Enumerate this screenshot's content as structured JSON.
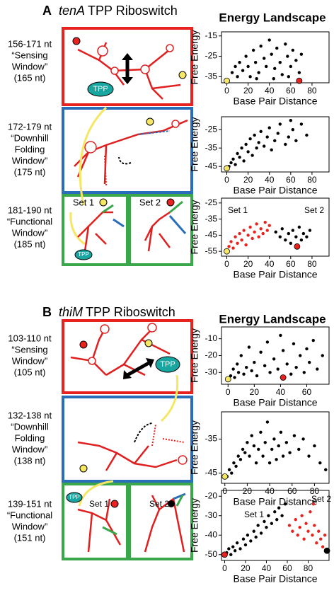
{
  "figure": {
    "panels": [
      {
        "letter": "A",
        "name": "tenA",
        "title_rest": "TPP Riboswitch",
        "landscape_title": "Energy Landscape",
        "windows": [
          [
            "156-171 nt",
            "“Sensing",
            "Window”",
            "(165 nt)"
          ],
          [
            "172-179 nt",
            "“Downhill",
            "Folding",
            "Window”",
            "(175 nt)"
          ],
          [
            "181-190 nt",
            "“Functional",
            "Window”",
            "(185 nt)"
          ]
        ],
        "diagram_labels": [
          "TPP",
          "Set 1",
          "Set 2",
          "TPP"
        ]
      },
      {
        "letter": "B",
        "name": "thiM",
        "title_rest": "TPP Riboswitch",
        "landscape_title": "Energy Landscape",
        "windows": [
          [
            "103-110 nt",
            "“Sensing",
            "Window”",
            "(105 nt)"
          ],
          [
            "132-138 nt",
            "“Downhill",
            "Folding",
            "Window”",
            "(138 nt)"
          ],
          [
            "139-151 nt",
            "“Functional",
            "Window”",
            "(151 nt)"
          ]
        ],
        "diagram_labels": [
          "TPP",
          "TPP",
          "Set 1",
          "Set 2"
        ]
      }
    ]
  },
  "chart_data": [
    {
      "type": "scatter",
      "xlabel": "Base Pair Distance",
      "ylabel": "Free Energy",
      "xlim": [
        -5,
        96
      ],
      "ylim": [
        -38,
        -13
      ],
      "xticks": [
        0,
        20,
        40,
        60,
        80
      ],
      "yticks": [
        -15,
        -25,
        -35
      ],
      "series": [
        {
          "color": "#000000",
          "x": [
            5,
            8,
            10,
            12,
            15,
            18,
            20,
            22,
            25,
            27,
            30,
            32,
            35,
            37,
            40,
            42,
            45,
            47,
            50,
            52,
            55,
            57,
            60,
            62,
            65,
            68,
            70,
            28,
            44,
            58
          ],
          "values": [
            -33,
            -30,
            -35,
            -28,
            -32,
            -25,
            -30,
            -35,
            -22,
            -28,
            -33,
            -20,
            -26,
            -30,
            -17,
            -24,
            -31,
            -21,
            -28,
            -34,
            -19,
            -25,
            -30,
            -22,
            -27,
            -33,
            -24,
            -36,
            -36,
            -35
          ]
        },
        {
          "color": "#f5e663",
          "x": [
            0
          ],
          "values": [
            -37
          ]
        },
        {
          "color": "#e8231f",
          "x": [
            68
          ],
          "values": [
            -37
          ]
        }
      ]
    },
    {
      "type": "scatter",
      "xlabel": "Base Pair Distance",
      "ylabel": "Free Energy",
      "xlim": [
        -5,
        96
      ],
      "ylim": [
        -48,
        -18
      ],
      "xticks": [
        0,
        20,
        40,
        60,
        80
      ],
      "yticks": [
        -25,
        -35,
        -45
      ],
      "series": [
        {
          "color": "#000000",
          "x": [
            2,
            4,
            6,
            8,
            10,
            12,
            14,
            16,
            18,
            20,
            22,
            24,
            26,
            28,
            30,
            32,
            35,
            38,
            40,
            42,
            45,
            48,
            50,
            55,
            58,
            62,
            65,
            70,
            75,
            60
          ],
          "values": [
            -45,
            -43,
            -41,
            -44,
            -38,
            -40,
            -35,
            -42,
            -33,
            -37,
            -30,
            -39,
            -28,
            -35,
            -32,
            -26,
            -34,
            -29,
            -24,
            -36,
            -31,
            -27,
            -22,
            -33,
            -29,
            -25,
            -31,
            -22,
            -28,
            -20
          ]
        },
        {
          "color": "#f5e663",
          "x": [
            0
          ],
          "values": [
            -46
          ]
        }
      ]
    },
    {
      "type": "scatter",
      "xlabel": "Base Pair Distance",
      "ylabel": "Free Energy",
      "xlim": [
        -5,
        96
      ],
      "ylim": [
        -58,
        -22
      ],
      "xticks": [
        0,
        20,
        40,
        60,
        80
      ],
      "yticks": [
        -25,
        -35,
        -45,
        -55
      ],
      "annotations": [
        "Set 1",
        "Set 2"
      ],
      "series": [
        {
          "color": "#e8231f",
          "x": [
            2,
            4,
            6,
            8,
            10,
            12,
            14,
            16,
            18,
            20,
            22,
            24,
            26,
            28,
            30,
            32,
            34,
            36,
            38,
            40
          ],
          "values": [
            -52,
            -49,
            -53,
            -46,
            -50,
            -44,
            -48,
            -42,
            -51,
            -45,
            -40,
            -47,
            -43,
            -38,
            -46,
            -41,
            -44,
            -37,
            -42,
            -39
          ]
        },
        {
          "color": "#000000",
          "x": [
            46,
            50,
            52,
            55,
            58,
            60,
            62,
            65,
            68,
            70,
            72,
            75,
            78
          ],
          "values": [
            -43,
            -46,
            -41,
            -48,
            -44,
            -50,
            -42,
            -46,
            -40,
            -48,
            -44,
            -46,
            -42
          ]
        },
        {
          "color": "#f5e663",
          "x": [
            0
          ],
          "values": [
            -55
          ]
        },
        {
          "color": "#e8231f",
          "x": [
            66
          ],
          "values": [
            -52
          ]
        }
      ]
    },
    {
      "type": "scatter",
      "xlabel": "Base Pair Distance",
      "ylabel": "Free Energy",
      "xlim": [
        -5,
        77
      ],
      "ylim": [
        -37,
        -3
      ],
      "xticks": [
        0,
        20,
        40,
        60
      ],
      "yticks": [
        -10,
        -20,
        -30
      ],
      "series": [
        {
          "color": "#000000",
          "x": [
            2,
            4,
            5,
            7,
            8,
            10,
            12,
            14,
            16,
            18,
            20,
            22,
            25,
            28,
            30,
            32,
            35,
            38,
            40,
            42,
            45,
            48,
            50,
            52,
            55,
            58,
            60,
            62,
            65,
            68,
            72
          ],
          "values": [
            -32,
            -28,
            -33,
            -25,
            -30,
            -20,
            -31,
            -27,
            -15,
            -29,
            -24,
            -32,
            -18,
            -26,
            -12,
            -30,
            -22,
            -28,
            -8,
            -17,
            -25,
            -31,
            -13,
            -27,
            -20,
            -30,
            -16,
            -24,
            -11,
            -28,
            -20
          ]
        },
        {
          "color": "#f5e663",
          "x": [
            0
          ],
          "values": [
            -34
          ]
        },
        {
          "color": "#e8231f",
          "x": [
            42
          ],
          "values": [
            -33
          ]
        }
      ]
    },
    {
      "type": "scatter",
      "xlabel": "Base Pair Distance",
      "ylabel": "Free Energy",
      "xlim": [
        -3,
        93
      ],
      "ylim": [
        -48,
        -27
      ],
      "xticks": [
        0,
        20,
        40,
        60,
        80
      ],
      "yticks": [
        -35,
        -45
      ],
      "series": [
        {
          "color": "#000000",
          "x": [
            2,
            4,
            6,
            8,
            10,
            12,
            14,
            16,
            18,
            20,
            22,
            24,
            26,
            28,
            30,
            32,
            34,
            36,
            38,
            40,
            42,
            44,
            46,
            48,
            50,
            52,
            55,
            58,
            62,
            66,
            70,
            75,
            80,
            85,
            90
          ],
          "values": [
            -46,
            -44,
            -45,
            -42,
            -43,
            -40,
            -41,
            -38,
            -39,
            -36,
            -40,
            -34,
            -37,
            -42,
            -38,
            -33,
            -40,
            -36,
            -30,
            -42,
            -38,
            -35,
            -41,
            -37,
            -33,
            -40,
            -36,
            -39,
            -34,
            -38,
            -35,
            -40,
            -37,
            -42,
            -44
          ]
        },
        {
          "color": "#f5e663",
          "x": [
            0
          ],
          "values": [
            -46
          ]
        }
      ]
    },
    {
      "type": "scatter",
      "xlabel": "Base Pair Distance",
      "ylabel": "Free Energy",
      "xlim": [
        -3,
        100
      ],
      "ylim": [
        -53,
        -17
      ],
      "xticks": [
        0,
        20,
        40,
        60,
        80
      ],
      "yticks": [
        -20,
        -30,
        -40,
        -50
      ],
      "annotations": [
        "Set 1",
        "Set 2"
      ],
      "series": [
        {
          "color": "#000000",
          "x": [
            2,
            4,
            6,
            8,
            10,
            12,
            15,
            18,
            20,
            22,
            25,
            28,
            30,
            32,
            35,
            38,
            40,
            42,
            45,
            48,
            50,
            52,
            55,
            58
          ],
          "values": [
            -49,
            -47,
            -50,
            -46,
            -48,
            -44,
            -47,
            -42,
            -45,
            -40,
            -43,
            -38,
            -41,
            -35,
            -39,
            -33,
            -36,
            -30,
            -34,
            -28,
            -32,
            -26,
            -30,
            -24
          ]
        },
        {
          "color": "#e8231f",
          "x": [
            62,
            65,
            68,
            70,
            72,
            74,
            76,
            78,
            80,
            82,
            84,
            86,
            88,
            90,
            92,
            94,
            96,
            85
          ],
          "values": [
            -35,
            -38,
            -32,
            -40,
            -36,
            -30,
            -42,
            -34,
            -38,
            -28,
            -40,
            -35,
            -44,
            -38,
            -42,
            -46,
            -40,
            -24
          ]
        },
        {
          "color": "#e8231f",
          "x": [
            0
          ],
          "values": [
            -50
          ]
        },
        {
          "color": "#000000",
          "x": [
            98
          ],
          "values": [
            -48
          ]
        }
      ]
    }
  ]
}
